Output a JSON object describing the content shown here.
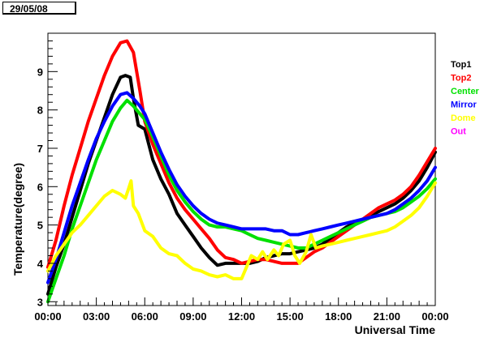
{
  "header": {
    "date": "29/05/08"
  },
  "chart_data": {
    "type": "line",
    "xlabel": "Universal Time",
    "ylabel": "Temperature(degree)",
    "xlim": [
      0,
      24
    ],
    "ylim": [
      2.9,
      10.0
    ],
    "x_ticks": [
      {
        "value": 0,
        "label": "00:00"
      },
      {
        "value": 3,
        "label": "03:00"
      },
      {
        "value": 6,
        "label": "06:00"
      },
      {
        "value": 9,
        "label": "09:00"
      },
      {
        "value": 12,
        "label": "12:00"
      },
      {
        "value": 15,
        "label": "15:00"
      },
      {
        "value": 18,
        "label": "18:00"
      },
      {
        "value": 21,
        "label": "21:00"
      },
      {
        "value": 24,
        "label": "00:00"
      }
    ],
    "y_ticks": [
      {
        "value": 3,
        "label": "3"
      },
      {
        "value": 4,
        "label": "4"
      },
      {
        "value": 5,
        "label": "5"
      },
      {
        "value": 6,
        "label": "6"
      },
      {
        "value": 7,
        "label": "7"
      },
      {
        "value": 8,
        "label": "8"
      },
      {
        "value": 9,
        "label": "9"
      }
    ],
    "legend_position": "right",
    "series": [
      {
        "name": "Top1",
        "color": "#000000",
        "points": [
          [
            0,
            3.2
          ],
          [
            0.5,
            3.9
          ],
          [
            1,
            4.5
          ],
          [
            1.5,
            5.2
          ],
          [
            2,
            5.9
          ],
          [
            2.5,
            6.6
          ],
          [
            3,
            7.2
          ],
          [
            3.5,
            7.8
          ],
          [
            4,
            8.4
          ],
          [
            4.5,
            8.85
          ],
          [
            4.8,
            8.9
          ],
          [
            5.1,
            8.85
          ],
          [
            5.3,
            8.3
          ],
          [
            5.6,
            7.6
          ],
          [
            6,
            7.5
          ],
          [
            6.5,
            6.7
          ],
          [
            7,
            6.2
          ],
          [
            7.5,
            5.8
          ],
          [
            8,
            5.3
          ],
          [
            8.5,
            5.0
          ],
          [
            9,
            4.7
          ],
          [
            9.5,
            4.4
          ],
          [
            10,
            4.15
          ],
          [
            10.5,
            3.95
          ],
          [
            11,
            4.0
          ],
          [
            11.5,
            4.0
          ],
          [
            12,
            4.0
          ],
          [
            12.5,
            4.0
          ],
          [
            13,
            4.05
          ],
          [
            13.5,
            4.15
          ],
          [
            14,
            4.2
          ],
          [
            14.5,
            4.25
          ],
          [
            15,
            4.25
          ],
          [
            15.5,
            4.3
          ],
          [
            16,
            4.35
          ],
          [
            16.5,
            4.4
          ],
          [
            17,
            4.5
          ],
          [
            17.5,
            4.65
          ],
          [
            18,
            4.8
          ],
          [
            18.5,
            4.95
          ],
          [
            19,
            5.05
          ],
          [
            19.5,
            5.15
          ],
          [
            20,
            5.25
          ],
          [
            20.5,
            5.35
          ],
          [
            21,
            5.45
          ],
          [
            21.5,
            5.55
          ],
          [
            22,
            5.7
          ],
          [
            22.5,
            5.9
          ],
          [
            23,
            6.15
          ],
          [
            23.5,
            6.5
          ],
          [
            24,
            6.9
          ]
        ]
      },
      {
        "name": "Top2",
        "color": "#ff0000",
        "points": [
          [
            0,
            3.9
          ],
          [
            0.5,
            4.6
          ],
          [
            1,
            5.5
          ],
          [
            1.5,
            6.3
          ],
          [
            2,
            7.0
          ],
          [
            2.5,
            7.7
          ],
          [
            3,
            8.3
          ],
          [
            3.5,
            8.9
          ],
          [
            4,
            9.4
          ],
          [
            4.5,
            9.75
          ],
          [
            4.9,
            9.8
          ],
          [
            5.3,
            9.5
          ],
          [
            5.7,
            8.5
          ],
          [
            6,
            7.7
          ],
          [
            6.5,
            7.1
          ],
          [
            7,
            6.6
          ],
          [
            7.5,
            6.1
          ],
          [
            8,
            5.7
          ],
          [
            8.5,
            5.4
          ],
          [
            9,
            5.15
          ],
          [
            9.5,
            4.9
          ],
          [
            10,
            4.65
          ],
          [
            10.5,
            4.35
          ],
          [
            11,
            4.15
          ],
          [
            11.5,
            4.1
          ],
          [
            12,
            4.0
          ],
          [
            12.5,
            4.05
          ],
          [
            13,
            4.1
          ],
          [
            13.5,
            4.1
          ],
          [
            14,
            4.05
          ],
          [
            14.5,
            4.0
          ],
          [
            15,
            4.0
          ],
          [
            15.5,
            4.0
          ],
          [
            16,
            4.15
          ],
          [
            16.5,
            4.3
          ],
          [
            17,
            4.4
          ],
          [
            17.5,
            4.55
          ],
          [
            18,
            4.7
          ],
          [
            18.5,
            4.85
          ],
          [
            19,
            5.0
          ],
          [
            19.5,
            5.15
          ],
          [
            20,
            5.3
          ],
          [
            20.5,
            5.45
          ],
          [
            21,
            5.55
          ],
          [
            21.5,
            5.65
          ],
          [
            22,
            5.8
          ],
          [
            22.5,
            6.0
          ],
          [
            23,
            6.3
          ],
          [
            23.5,
            6.65
          ],
          [
            24,
            7.0
          ]
        ]
      },
      {
        "name": "Center",
        "color": "#00e000",
        "points": [
          [
            0,
            3.0
          ],
          [
            0.5,
            3.6
          ],
          [
            1,
            4.2
          ],
          [
            1.5,
            4.9
          ],
          [
            2,
            5.5
          ],
          [
            2.5,
            6.1
          ],
          [
            3,
            6.7
          ],
          [
            3.5,
            7.2
          ],
          [
            4,
            7.7
          ],
          [
            4.5,
            8.05
          ],
          [
            4.9,
            8.25
          ],
          [
            5.3,
            8.1
          ],
          [
            5.7,
            7.9
          ],
          [
            6,
            7.75
          ],
          [
            6.5,
            7.3
          ],
          [
            7,
            6.8
          ],
          [
            7.5,
            6.3
          ],
          [
            8,
            5.9
          ],
          [
            8.5,
            5.6
          ],
          [
            9,
            5.35
          ],
          [
            9.5,
            5.15
          ],
          [
            10,
            5.0
          ],
          [
            10.5,
            4.95
          ],
          [
            11,
            4.95
          ],
          [
            11.5,
            4.9
          ],
          [
            12,
            4.85
          ],
          [
            12.5,
            4.75
          ],
          [
            13,
            4.65
          ],
          [
            13.5,
            4.6
          ],
          [
            14,
            4.55
          ],
          [
            14.5,
            4.5
          ],
          [
            15,
            4.45
          ],
          [
            15.5,
            4.4
          ],
          [
            16,
            4.4
          ],
          [
            16.5,
            4.5
          ],
          [
            17,
            4.6
          ],
          [
            17.5,
            4.7
          ],
          [
            18,
            4.8
          ],
          [
            18.5,
            4.9
          ],
          [
            19,
            5.0
          ],
          [
            19.5,
            5.1
          ],
          [
            20,
            5.2
          ],
          [
            20.5,
            5.25
          ],
          [
            21,
            5.3
          ],
          [
            21.5,
            5.35
          ],
          [
            22,
            5.45
          ],
          [
            22.5,
            5.6
          ],
          [
            23,
            5.75
          ],
          [
            23.5,
            5.95
          ],
          [
            24,
            6.2
          ]
        ]
      },
      {
        "name": "Mirror",
        "color": "#0000ff",
        "points": [
          [
            0,
            3.5
          ],
          [
            0.5,
            4.1
          ],
          [
            1,
            4.8
          ],
          [
            1.5,
            5.5
          ],
          [
            2,
            6.1
          ],
          [
            2.5,
            6.7
          ],
          [
            3,
            7.25
          ],
          [
            3.5,
            7.7
          ],
          [
            4,
            8.1
          ],
          [
            4.5,
            8.4
          ],
          [
            4.9,
            8.45
          ],
          [
            5.3,
            8.3
          ],
          [
            5.7,
            8.1
          ],
          [
            6,
            7.9
          ],
          [
            6.5,
            7.4
          ],
          [
            7,
            6.9
          ],
          [
            7.5,
            6.45
          ],
          [
            8,
            6.05
          ],
          [
            8.5,
            5.75
          ],
          [
            9,
            5.5
          ],
          [
            9.5,
            5.3
          ],
          [
            10,
            5.15
          ],
          [
            10.5,
            5.05
          ],
          [
            11,
            5.0
          ],
          [
            11.5,
            4.95
          ],
          [
            12,
            4.9
          ],
          [
            12.5,
            4.9
          ],
          [
            13,
            4.9
          ],
          [
            13.5,
            4.9
          ],
          [
            14,
            4.85
          ],
          [
            14.5,
            4.85
          ],
          [
            15,
            4.75
          ],
          [
            15.5,
            4.75
          ],
          [
            16,
            4.8
          ],
          [
            16.5,
            4.85
          ],
          [
            17,
            4.9
          ],
          [
            17.5,
            4.95
          ],
          [
            18,
            5.0
          ],
          [
            18.5,
            5.05
          ],
          [
            19,
            5.1
          ],
          [
            19.5,
            5.15
          ],
          [
            20,
            5.2
          ],
          [
            20.5,
            5.25
          ],
          [
            21,
            5.3
          ],
          [
            21.5,
            5.4
          ],
          [
            22,
            5.55
          ],
          [
            22.5,
            5.7
          ],
          [
            23,
            5.9
          ],
          [
            23.5,
            6.15
          ],
          [
            24,
            6.5
          ]
        ]
      },
      {
        "name": "Dome",
        "color": "#ffff00",
        "points": [
          [
            0,
            3.8
          ],
          [
            0.5,
            4.2
          ],
          [
            1,
            4.5
          ],
          [
            1.5,
            4.8
          ],
          [
            2,
            5.0
          ],
          [
            2.5,
            5.25
          ],
          [
            3,
            5.5
          ],
          [
            3.5,
            5.75
          ],
          [
            4,
            5.9
          ],
          [
            4.5,
            5.8
          ],
          [
            4.8,
            5.7
          ],
          [
            5.0,
            5.95
          ],
          [
            5.15,
            6.15
          ],
          [
            5.3,
            5.5
          ],
          [
            5.6,
            5.3
          ],
          [
            6,
            4.85
          ],
          [
            6.5,
            4.7
          ],
          [
            7,
            4.4
          ],
          [
            7.5,
            4.25
          ],
          [
            8,
            4.2
          ],
          [
            8.5,
            4.0
          ],
          [
            9,
            3.85
          ],
          [
            9.5,
            3.8
          ],
          [
            10,
            3.7
          ],
          [
            10.5,
            3.65
          ],
          [
            11,
            3.7
          ],
          [
            11.5,
            3.6
          ],
          [
            12,
            3.6
          ],
          [
            12.3,
            3.9
          ],
          [
            12.6,
            4.2
          ],
          [
            13,
            4.1
          ],
          [
            13.3,
            4.3
          ],
          [
            13.6,
            4.1
          ],
          [
            14,
            4.35
          ],
          [
            14.3,
            4.2
          ],
          [
            14.6,
            4.5
          ],
          [
            15,
            4.6
          ],
          [
            15.3,
            4.2
          ],
          [
            15.6,
            4.0
          ],
          [
            16,
            4.3
          ],
          [
            16.3,
            4.75
          ],
          [
            16.6,
            4.4
          ],
          [
            17,
            4.45
          ],
          [
            17.5,
            4.5
          ],
          [
            18,
            4.55
          ],
          [
            18.5,
            4.6
          ],
          [
            19,
            4.65
          ],
          [
            19.5,
            4.7
          ],
          [
            20,
            4.75
          ],
          [
            20.5,
            4.8
          ],
          [
            21,
            4.85
          ],
          [
            21.5,
            4.95
          ],
          [
            22,
            5.1
          ],
          [
            22.5,
            5.25
          ],
          [
            23,
            5.45
          ],
          [
            23.5,
            5.75
          ],
          [
            24,
            6.1
          ]
        ]
      },
      {
        "name": "Out",
        "color": "#ff00ff",
        "points": []
      }
    ]
  }
}
